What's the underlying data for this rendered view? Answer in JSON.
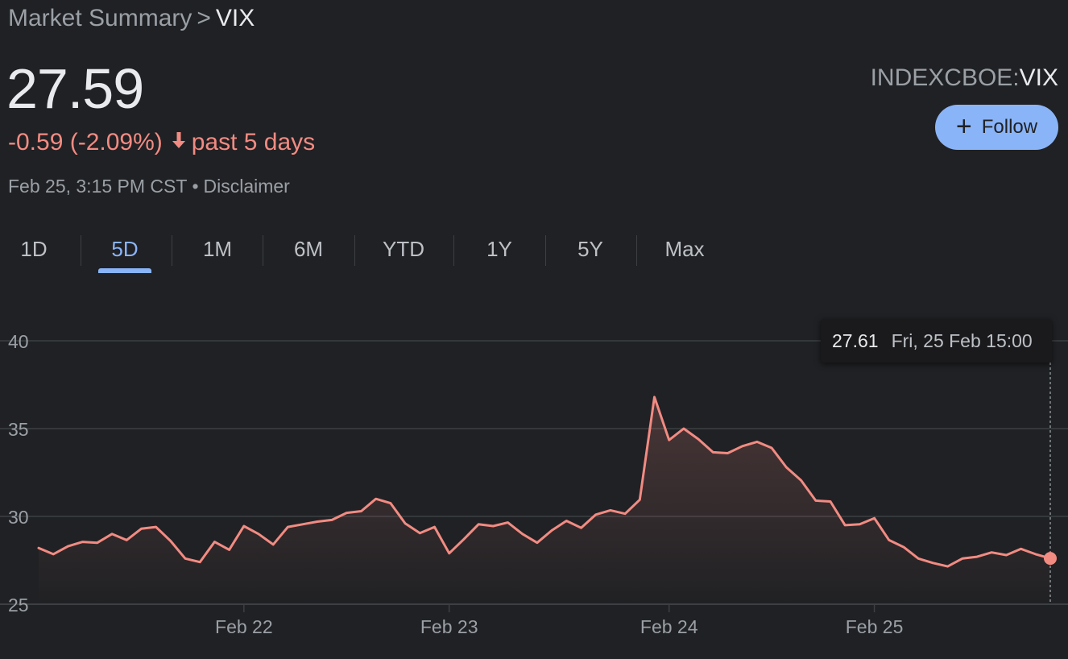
{
  "breadcrumb": {
    "parent": "Market Summary",
    "separator": ">",
    "current": "VIX"
  },
  "quote": {
    "price": "27.59",
    "change": "-0.59 (-2.09%)",
    "change_arrow_icon": "arrow-down-icon",
    "period": "past 5 days",
    "timestamp": "Feb 25, 3:15 PM CST",
    "dot": "•",
    "disclaimer": "Disclaimer"
  },
  "ticker": {
    "exchange": "INDEXCBOE:",
    "symbol": "VIX"
  },
  "follow_button": {
    "label": "Follow",
    "icon": "plus-icon"
  },
  "tabs": [
    "1D",
    "5D",
    "1M",
    "6M",
    "YTD",
    "1Y",
    "5Y",
    "Max"
  ],
  "active_tab": "5D",
  "tooltip": {
    "value": "27.61",
    "time": "Fri, 25 Feb 15:00"
  },
  "colors": {
    "background": "#202124",
    "line": "#f28b82",
    "accent": "#8ab4f8",
    "negative": "#f28b82",
    "grid": "#3c4043"
  },
  "chart_data": {
    "type": "line",
    "title": "",
    "xlabel": "",
    "ylabel": "",
    "ylim": [
      25,
      40
    ],
    "y_ticks": [
      40,
      35,
      30,
      25
    ],
    "x_tick_labels": [
      "Feb 22",
      "Feb 23",
      "Feb 24",
      "Feb 25"
    ],
    "x_tick_index": [
      14,
      28,
      43,
      57
    ],
    "grid": true,
    "fill": "area-under-line",
    "series": [
      {
        "values": [
          28.2,
          27.85,
          28.3,
          28.55,
          28.5,
          29.0,
          28.65,
          29.3,
          29.4,
          28.6,
          27.6,
          27.4,
          28.55,
          28.1,
          29.45,
          29.0,
          28.4,
          29.4,
          29.55,
          29.7,
          29.8,
          30.2,
          30.3,
          31.0,
          30.75,
          29.6,
          29.05,
          29.4,
          27.9,
          28.7,
          29.55,
          29.45,
          29.65,
          29.0,
          28.5,
          29.2,
          29.75,
          29.35,
          30.1,
          30.35,
          30.15,
          30.95,
          36.8,
          34.35,
          35.0,
          34.4,
          33.65,
          33.6,
          34.0,
          34.25,
          33.9,
          32.8,
          32.05,
          30.9,
          30.85,
          29.5,
          29.55,
          29.9,
          28.65,
          28.25,
          27.6,
          27.35,
          27.15,
          27.6,
          27.7,
          27.95,
          27.8,
          28.15,
          27.85,
          27.61
        ]
      }
    ],
    "last_value": 27.61,
    "last_label": "Fri, 25 Feb 15:00"
  }
}
